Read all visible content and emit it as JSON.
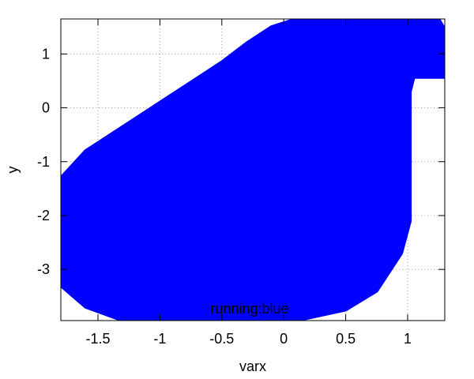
{
  "chart_data": {
    "type": "area",
    "title": "",
    "xlabel": "varx",
    "ylabel": "y",
    "xlim": [
      -1.8,
      1.3
    ],
    "ylim": [
      -3.95,
      1.65
    ],
    "xticks": [
      -1.5,
      -1,
      -0.5,
      0,
      0.5,
      1
    ],
    "xtick_labels": [
      "-1.5",
      "-1",
      "-0.5",
      "0",
      "0.5",
      "1"
    ],
    "yticks": [
      -3,
      -2,
      -1,
      0,
      1
    ],
    "ytick_labels": [
      "-3",
      "-2",
      "-1",
      "0",
      "1"
    ],
    "grid": true,
    "legend": {
      "label": "running:blue",
      "placement": "bottom-center"
    },
    "fill_color": "#0000ff",
    "series": [
      {
        "label": "running:blue",
        "color": "#0000ff",
        "region_boundary": [
          [
            -1.8,
            -1.3
          ],
          [
            -1.6,
            -0.8
          ],
          [
            -1.4,
            -0.5
          ],
          [
            -1.1,
            -0.05
          ],
          [
            -0.8,
            0.4
          ],
          [
            -0.5,
            0.85
          ],
          [
            -0.3,
            1.2
          ],
          [
            -0.1,
            1.5
          ],
          [
            0.1,
            1.65
          ],
          [
            1.25,
            1.65
          ],
          [
            1.3,
            1.45
          ],
          [
            1.3,
            0.57
          ],
          [
            1.05,
            0.57
          ],
          [
            1.02,
            0.3
          ],
          [
            1.02,
            -2.1
          ],
          [
            0.95,
            -2.7
          ],
          [
            0.75,
            -3.4
          ],
          [
            0.5,
            -3.75
          ],
          [
            0.1,
            -3.95
          ],
          [
            -1.3,
            -3.95
          ],
          [
            -1.6,
            -3.7
          ],
          [
            -1.8,
            -3.3
          ],
          [
            -1.8,
            -1.3
          ]
        ]
      }
    ]
  }
}
